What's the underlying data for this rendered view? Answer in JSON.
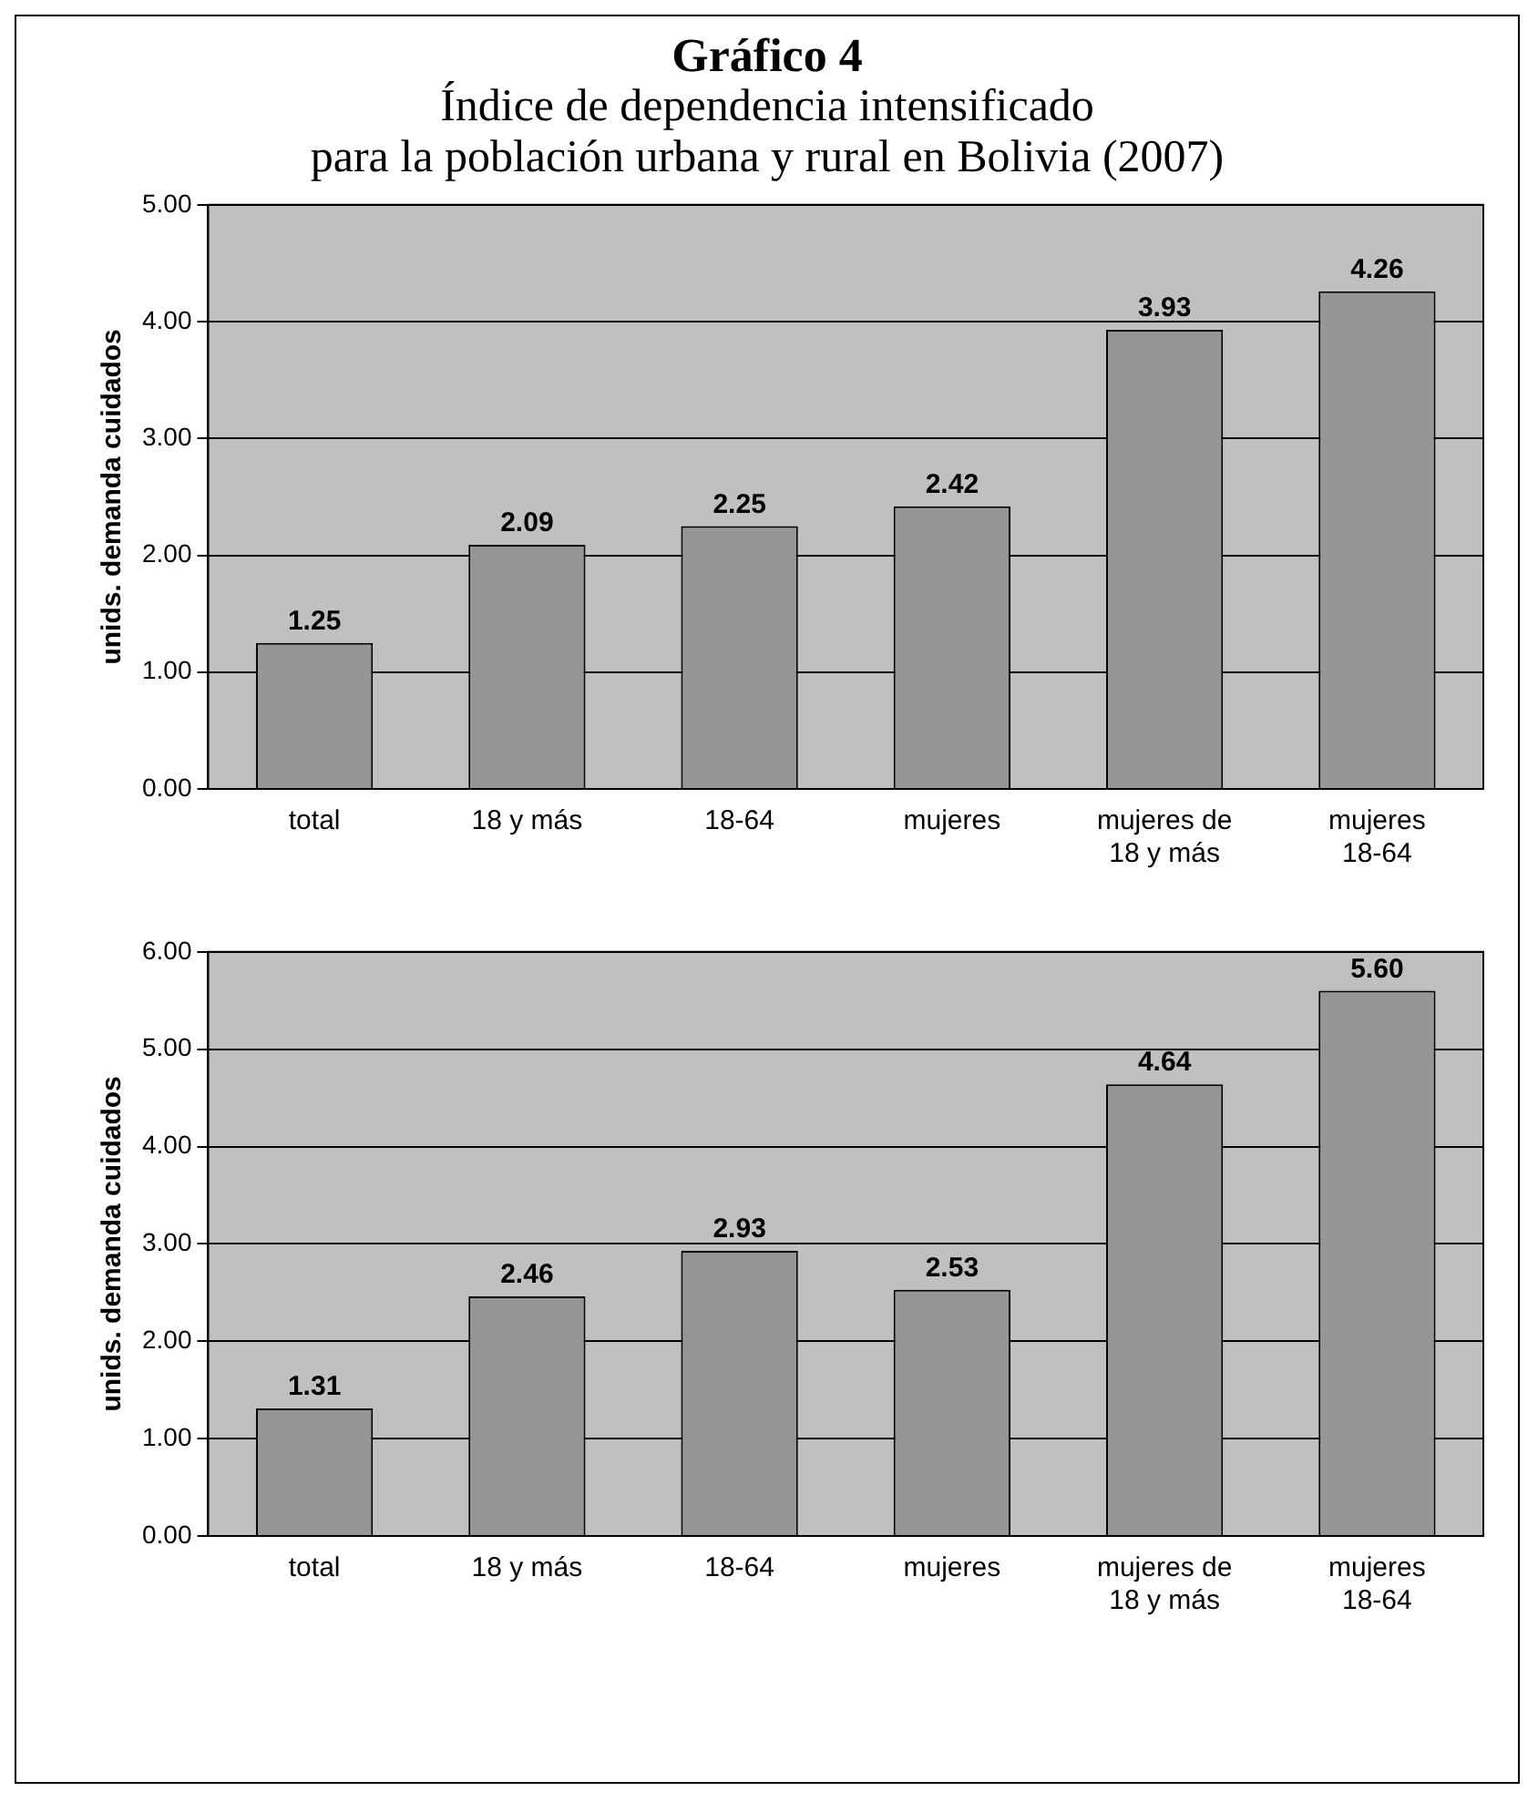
{
  "chart_data": [
    {
      "type": "bar",
      "title": "Gráfico 4",
      "subtitle": "Índice de dependencia intensificado\npara la población urbana y rural en Bolivia (2007)",
      "ylabel": "unids. demanda cuidados",
      "categories": [
        "total",
        "18 y más",
        "18-64",
        "mujeres",
        "mujeres de 18 y más",
        "mujeres 18-64"
      ],
      "values": [
        1.25,
        2.09,
        2.25,
        2.42,
        3.93,
        4.26
      ],
      "value_labels": [
        "1.25",
        "2.09",
        "2.25",
        "2.42",
        "3.93",
        "4.26"
      ],
      "color": "#969696",
      "ylim": [
        0,
        5
      ],
      "yticks": [
        {
          "value": 0,
          "label": "0.00"
        },
        {
          "value": 1,
          "label": "1.00"
        },
        {
          "value": 2,
          "label": "2.00"
        },
        {
          "value": 3,
          "label": "3.00"
        },
        {
          "value": 4,
          "label": "4.00"
        },
        {
          "value": 5,
          "label": "5.00"
        }
      ],
      "grid": "y",
      "legend": false
    },
    {
      "type": "bar",
      "ylabel": "unids. demanda cuidados",
      "categories": [
        "total",
        "18 y más",
        "18-64",
        "mujeres",
        "mujeres de 18 y más",
        "mujeres 18-64"
      ],
      "values": [
        1.31,
        2.46,
        2.93,
        2.53,
        4.64,
        5.6
      ],
      "value_labels": [
        "1.31",
        "2.46",
        "2.93",
        "2.53",
        "4.64",
        "5.60"
      ],
      "color": "#969696",
      "ylim": [
        0,
        6
      ],
      "yticks": [
        {
          "value": 0,
          "label": "0.00"
        },
        {
          "value": 1,
          "label": "1.00"
        },
        {
          "value": 2,
          "label": "2.00"
        },
        {
          "value": 3,
          "label": "3.00"
        },
        {
          "value": 4,
          "label": "4.00"
        },
        {
          "value": 5,
          "label": "5.00"
        },
        {
          "value": 6,
          "label": "6.00"
        }
      ],
      "grid": "y",
      "legend": false
    }
  ]
}
